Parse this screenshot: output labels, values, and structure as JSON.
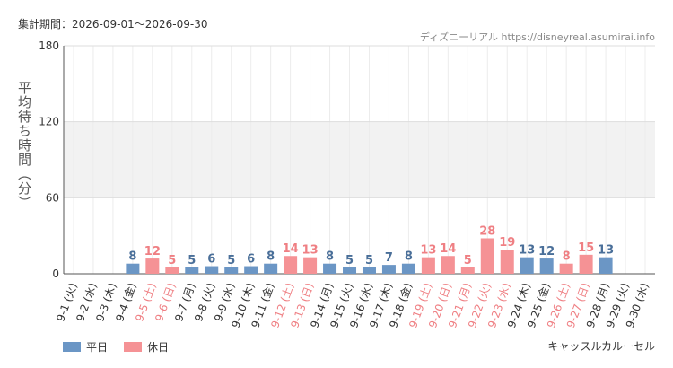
{
  "header": {
    "period": "集計期間：2026-09-01～2026-09-30",
    "site": "ディズニーリアル https://disneyreal.asumirai.info"
  },
  "legend": {
    "weekday": "平日",
    "holiday": "休日"
  },
  "attraction_name": "キャッスルカルーセル",
  "colors": {
    "weekday": "#6b96c5",
    "holiday": "#f59295",
    "holiday_label": "#ef7f83",
    "weekday_label": "#4a6f99",
    "band": "#f2f2f2"
  },
  "chart_data": {
    "type": "bar",
    "ylabel": "平均待ち時間（分）",
    "ylim": [
      0,
      180
    ],
    "yticks": [
      0,
      60,
      120,
      180
    ],
    "bands": [
      [
        60,
        120
      ]
    ],
    "categories": [
      "9-1 (火)",
      "9-2 (水)",
      "9-3 (木)",
      "9-4 (金)",
      "9-5 (土)",
      "9-6 (日)",
      "9-7 (月)",
      "9-8 (火)",
      "9-9 (水)",
      "9-10 (木)",
      "9-11 (金)",
      "9-12 (土)",
      "9-13 (日)",
      "9-14 (月)",
      "9-15 (火)",
      "9-16 (水)",
      "9-17 (木)",
      "9-18 (金)",
      "9-19 (土)",
      "9-20 (日)",
      "9-21 (月)",
      "9-22 (火)",
      "9-23 (水)",
      "9-24 (木)",
      "9-25 (金)",
      "9-26 (土)",
      "9-27 (日)",
      "9-28 (月)",
      "9-29 (火)",
      "9-30 (水)"
    ],
    "values": [
      null,
      null,
      null,
      8,
      12,
      5,
      5,
      6,
      5,
      6,
      8,
      14,
      13,
      8,
      5,
      5,
      7,
      8,
      13,
      14,
      5,
      28,
      19,
      13,
      12,
      8,
      15,
      13,
      null,
      null
    ],
    "day_types": [
      "weekday",
      "weekday",
      "weekday",
      "weekday",
      "holiday",
      "holiday",
      "weekday",
      "weekday",
      "weekday",
      "weekday",
      "weekday",
      "holiday",
      "holiday",
      "weekday",
      "weekday",
      "weekday",
      "weekday",
      "weekday",
      "holiday",
      "holiday",
      "holiday",
      "holiday",
      "holiday",
      "weekday",
      "weekday",
      "holiday",
      "holiday",
      "weekday",
      "weekday",
      "weekday"
    ]
  }
}
